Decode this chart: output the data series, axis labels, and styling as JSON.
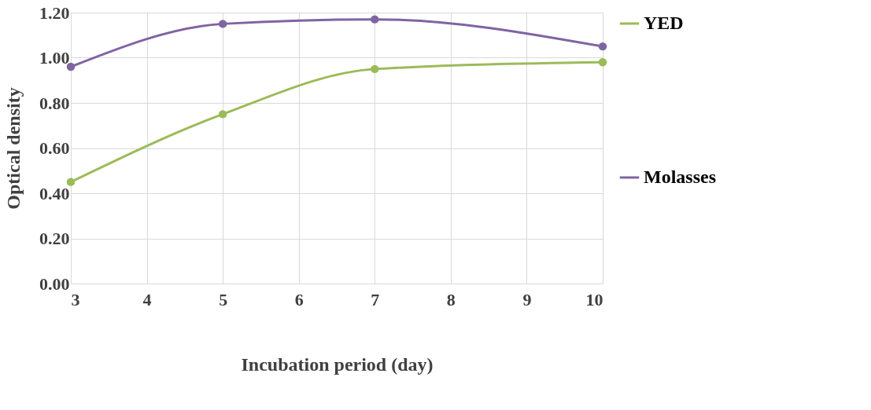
{
  "chart_data": {
    "type": "line",
    "xlabel": "Incubation period (day)",
    "ylabel": "Optical density",
    "categories": [
      "3",
      "4",
      "5",
      "6",
      "7",
      "8",
      "9",
      "10"
    ],
    "series": [
      {
        "name": "YED",
        "color": "#9bbb59",
        "values": [
          0.45,
          null,
          0.75,
          null,
          0.95,
          null,
          null,
          0.98
        ]
      },
      {
        "name": "Molasses",
        "color": "#8064a2",
        "values": [
          0.96,
          null,
          1.15,
          null,
          1.17,
          null,
          null,
          1.05
        ]
      }
    ],
    "ylim": [
      0,
      1.2
    ],
    "yticks": [
      {
        "value": 0,
        "label": "0.00"
      },
      {
        "value": 0.2,
        "label": "0.20"
      },
      {
        "value": 0.4,
        "label": "0.40"
      },
      {
        "value": 0.6,
        "label": "0.60"
      },
      {
        "value": 0.8,
        "label": "0.80"
      },
      {
        "value": 1.0,
        "label": "1.00"
      },
      {
        "value": 1.2,
        "label": "1.20"
      }
    ],
    "grid": true,
    "legend": "right",
    "marker": "circle",
    "line_style": "solid"
  }
}
